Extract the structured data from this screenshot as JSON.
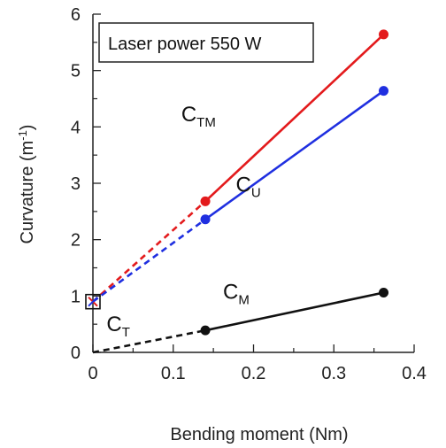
{
  "chart_data": {
    "type": "line",
    "xlabel": "Bending moment (Nm)",
    "ylabel_main": "Curvature (m",
    "ylabel_sup": "-1",
    "ylabel_close": ")",
    "xlim": [
      0,
      0.4
    ],
    "ylim": [
      0,
      6
    ],
    "x_ticks": [
      0,
      0.1,
      0.2,
      0.3,
      0.4
    ],
    "x_tick_labels": [
      "0",
      "0.1",
      "0.2",
      "0.3",
      "0.4"
    ],
    "y_ticks": [
      0,
      1,
      2,
      3,
      4,
      5,
      6
    ],
    "y_tick_labels": [
      "0",
      "1",
      "2",
      "3",
      "4",
      "5",
      "6"
    ],
    "annotation": "Laser power 550 W",
    "series": [
      {
        "name": "C_TM",
        "label_main": "C",
        "label_sub": "TM",
        "color": "#e31a1c",
        "points": [
          [
            0.14,
            2.68
          ],
          [
            0.362,
            5.64
          ]
        ],
        "extrapolated_from": [
          0.0,
          0.9
        ],
        "label_at": [
          0.11,
          4.1
        ]
      },
      {
        "name": "C_U",
        "label_main": "C",
        "label_sub": "U",
        "color": "#1f2fe0",
        "points": [
          [
            0.14,
            2.36
          ],
          [
            0.362,
            4.64
          ]
        ],
        "extrapolated_from": [
          0.0,
          0.9
        ],
        "label_at": [
          0.178,
          2.85
        ]
      },
      {
        "name": "C_M",
        "label_main": "C",
        "label_sub": "M",
        "color": "#111111",
        "points": [
          [
            0.14,
            0.39
          ],
          [
            0.362,
            1.06
          ]
        ],
        "extrapolated_from": [
          0.0,
          0.0
        ],
        "label_at": [
          0.162,
          0.95
        ]
      }
    ],
    "special_point": {
      "name": "C_T",
      "label_main": "C",
      "label_sub": "T",
      "x": 0.0,
      "y": 0.9,
      "marker": "boxed-x",
      "label_at": [
        0.017,
        0.38
      ]
    }
  }
}
